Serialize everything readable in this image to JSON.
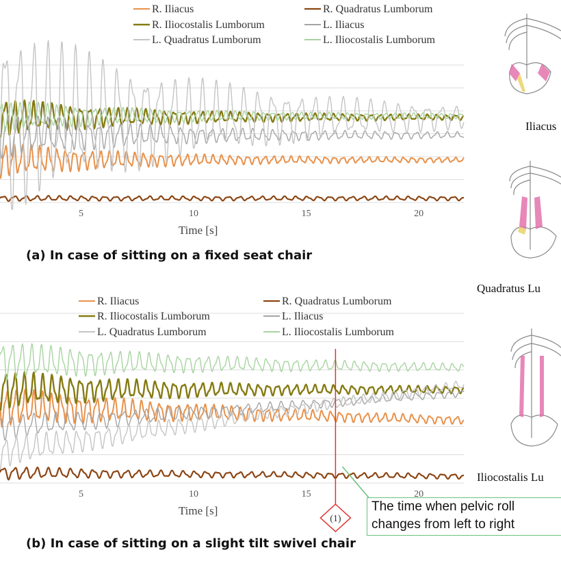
{
  "chart_data": [
    {
      "type": "line",
      "caption": "(a) In case of sitting on a fixed seat chair",
      "xlabel": "Time  [s]",
      "xticks": [
        5,
        10,
        15,
        20
      ],
      "xlim": [
        1.4,
        22
      ],
      "ylim": [
        0,
        1
      ],
      "grid": true,
      "legend_position": "top",
      "series": [
        {
          "name": "R. Iliacus",
          "color": "#e8914a",
          "width": 2,
          "base": 0.31,
          "amp0": 0.09,
          "decay": 0.17,
          "freq": 2.6
        },
        {
          "name": "R. Quadratus Lumborum",
          "color": "#8b4513",
          "width": 2.2,
          "base": 0.03,
          "amp0": 0.004,
          "decay": 0.2,
          "freq": 2.0
        },
        {
          "name": "R. Iliocostalis Lumborum",
          "color": "#857a12",
          "width": 2.4,
          "base": 0.62,
          "amp0": 0.1,
          "decay": 0.16,
          "freq": 2.4
        },
        {
          "name": "L. Iliacus",
          "color": "#a4a4a4",
          "width": 1.4,
          "base": 0.49,
          "amp0": 0.12,
          "decay": 0.14,
          "freq": 2.2
        },
        {
          "name": "L. Quadratus Lumborum",
          "color": "#c4c4c4",
          "width": 1.4,
          "base": 0.62,
          "amp0": 0.55,
          "decay": 0.11,
          "freq": 1.6
        },
        {
          "name": "L. Iliocostalis Lumborum",
          "color": "#a7d4a0",
          "width": 1.4,
          "base": 0.63,
          "amp0": 0.08,
          "decay": 0.15,
          "freq": 2.4
        }
      ]
    },
    {
      "type": "line",
      "caption": "(b) In case of sitting on a slight tilt swivel chair",
      "xlabel": "Time  [s]",
      "xticks": [
        5,
        10,
        15,
        20
      ],
      "xlim": [
        1.4,
        22
      ],
      "ylim": [
        0,
        1
      ],
      "grid": true,
      "legend_position": "top",
      "series": [
        {
          "name": "R. Iliacus",
          "color": "#e8914a",
          "width": 2,
          "base": 0.45,
          "amp0": 0.08,
          "decay": 0.12,
          "freq": 2.5,
          "trend": -0.08
        },
        {
          "name": "R. Quadratus Lumborum",
          "color": "#8b4513",
          "width": 2.2,
          "base": 0.06,
          "amp0": 0.02,
          "decay": 0.2,
          "freq": 2.0,
          "trend": -0.02
        },
        {
          "name": "R. Iliocostalis Lumborum",
          "color": "#857a12",
          "width": 2.4,
          "base": 0.55,
          "amp0": 0.08,
          "decay": 0.14,
          "freq": 2.4,
          "trend": 0.0
        },
        {
          "name": "L. Iliacus",
          "color": "#a4a4a4",
          "width": 1.4,
          "base": 0.33,
          "amp0": 0.05,
          "decay": 0.12,
          "freq": 2.0,
          "trend": 0.2
        },
        {
          "name": "L. Quadratus Lumborum",
          "color": "#c4c4c4",
          "width": 1.4,
          "base": 0.18,
          "amp0": 0.06,
          "decay": 0.1,
          "freq": 2.2,
          "trend": 0.4
        },
        {
          "name": "L. Iliocostalis Lumborum",
          "color": "#a7d4a0",
          "width": 1.4,
          "base": 0.72,
          "amp0": 0.08,
          "decay": 0.12,
          "freq": 2.3,
          "trend": -0.04
        }
      ],
      "marker": {
        "x": 16.3,
        "label": "(1)",
        "annotation": [
          "The time when pelvic roll",
          "changes from left to right"
        ]
      }
    }
  ],
  "anatomy_labels": [
    "Iliacus",
    "Quadratus Lu",
    "Iliocostalis Lu"
  ],
  "colors": {
    "highlight_muscle": "#e16aa8",
    "marker_line": "#e03030",
    "annotation_border": "#6cc07a"
  }
}
